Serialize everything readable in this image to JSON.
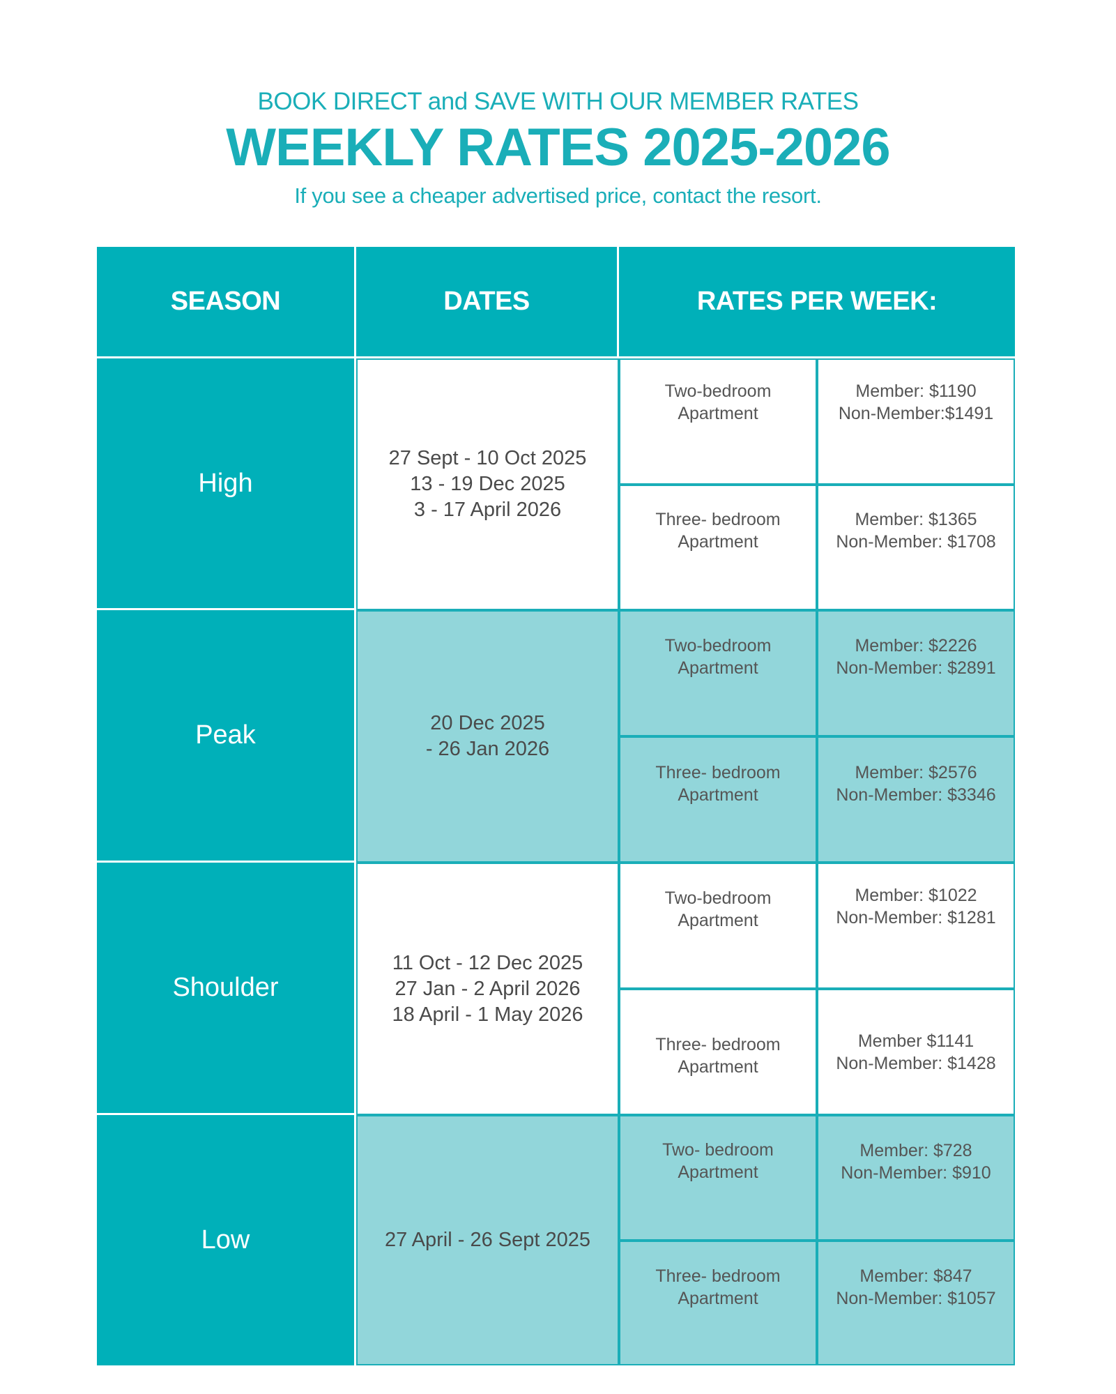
{
  "header": {
    "tagline": "BOOK DIRECT and SAVE WITH OUR MEMBER RATES",
    "title": "WEEKLY RATES 2025-2026",
    "subtitle": "If you see a cheaper advertised price, contact the resort."
  },
  "colors": {
    "accent": "#00b0b9",
    "accent_text": "#1aaeb8",
    "light_row": "#92d6da",
    "text_dark": "#4a4a4a"
  },
  "table": {
    "columns": [
      "SEASON",
      "DATES",
      "RATES PER WEEK:"
    ],
    "rows": [
      {
        "season": "High",
        "dates": "27 Sept - 10 Oct 2025\n13 - 19 Dec 2025\n3 - 17 April 2026",
        "units": [
          {
            "unit": "Two-bedroom\nApartment",
            "rates": "Member: $1190\nNon-Member:$1491"
          },
          {
            "unit": "Three- bedroom\nApartment",
            "rates": "Member: $1365\nNon-Member: $1708"
          }
        ]
      },
      {
        "season": "Peak",
        "dates": "20 Dec 2025\n- 26 Jan 2026",
        "units": [
          {
            "unit": "Two-bedroom\nApartment",
            "rates": "Member: $2226\nNon-Member: $2891"
          },
          {
            "unit": "Three- bedroom\nApartment",
            "rates": "Member: $2576\nNon-Member: $3346"
          }
        ]
      },
      {
        "season": "Shoulder",
        "dates": "11 Oct - 12 Dec 2025\n27 Jan - 2 April 2026\n18 April - 1 May 2026",
        "units": [
          {
            "unit": "Two-bedroom\nApartment",
            "rates": "Member: $1022\nNon-Member: $1281"
          },
          {
            "unit": "Three- bedroom\nApartment",
            "rates": "Member $1141\nNon-Member: $1428"
          }
        ]
      },
      {
        "season": "Low",
        "dates": "27 April - 26 Sept 2025",
        "units": [
          {
            "unit": "Two- bedroom\nApartment",
            "rates": "Member: $728\nNon-Member: $910"
          },
          {
            "unit": "Three- bedroom\nApartment",
            "rates": "Member: $847\nNon-Member: $1057"
          }
        ]
      }
    ]
  }
}
